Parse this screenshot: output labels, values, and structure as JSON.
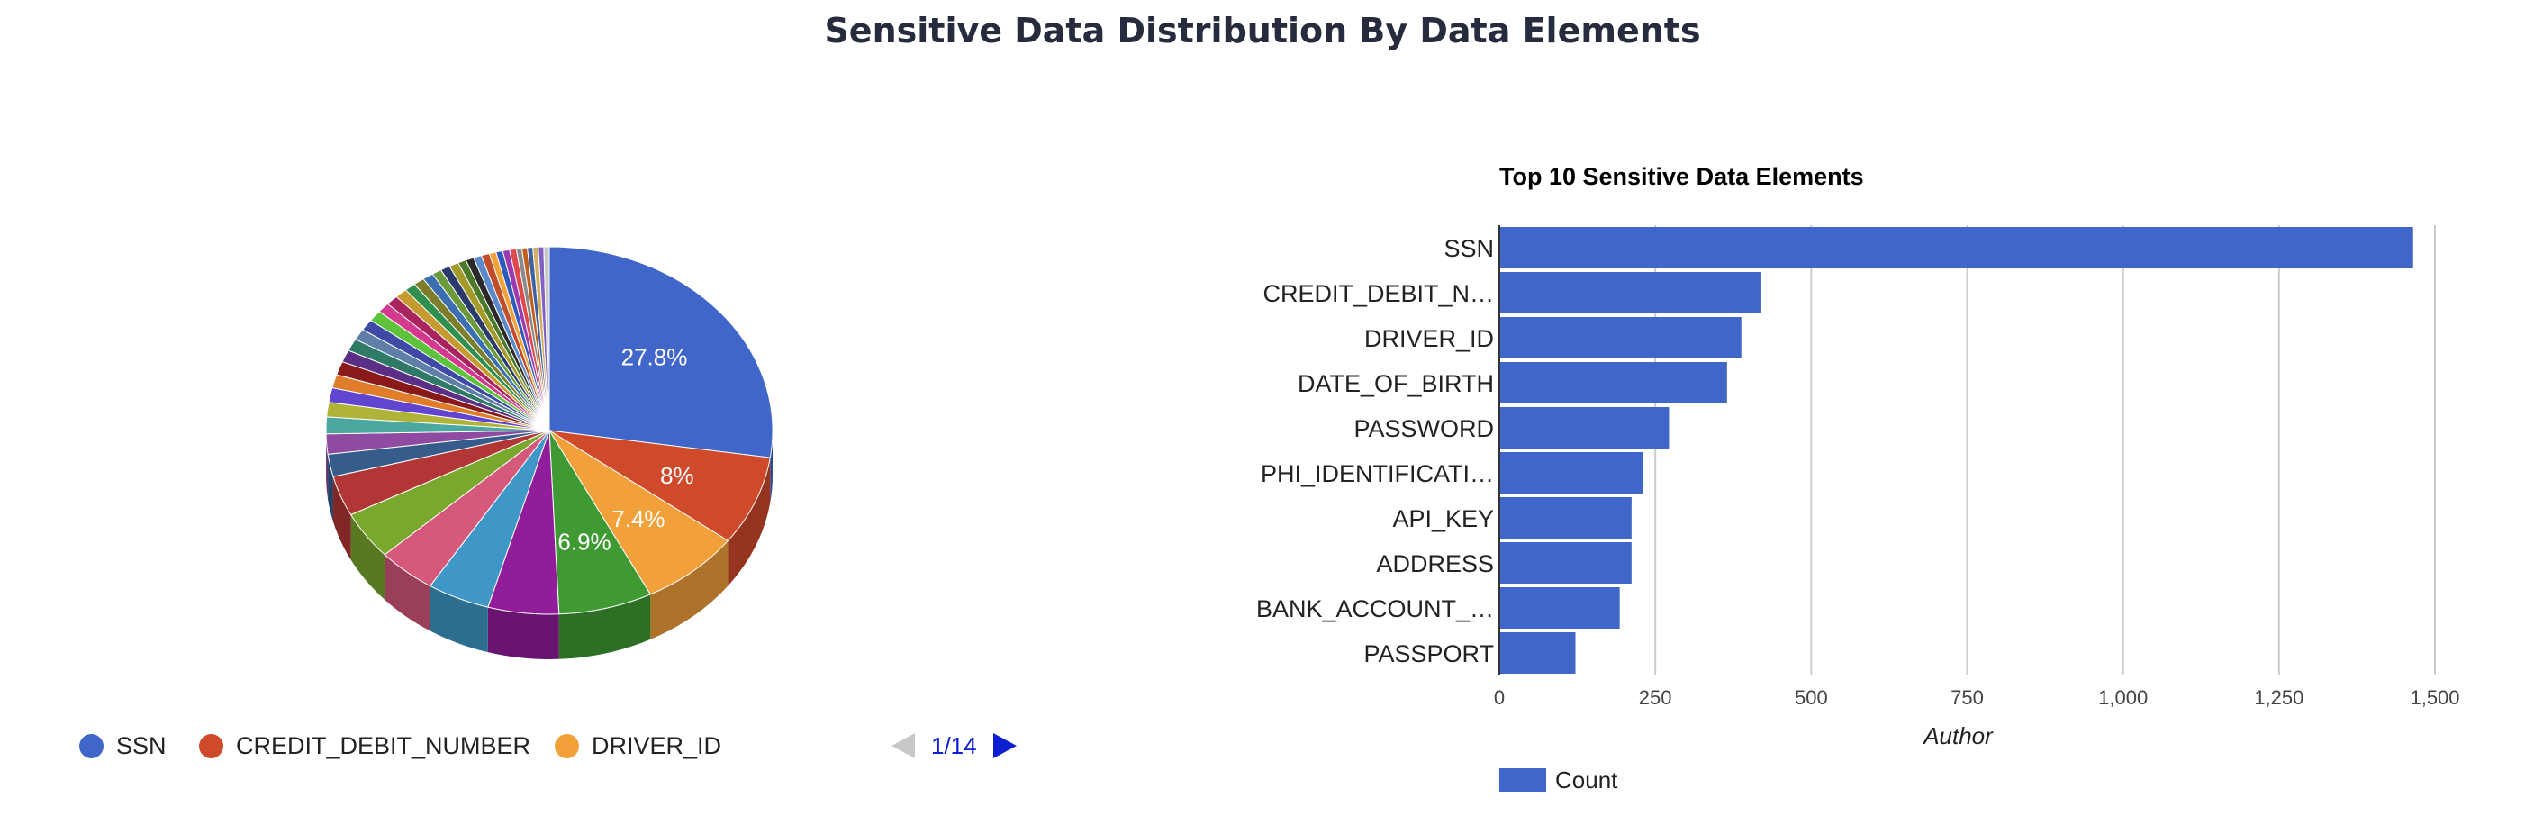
{
  "page": {
    "title": "Sensitive Data Distribution By Data Elements"
  },
  "chart_data": [
    {
      "type": "pie",
      "style": "3d",
      "slices": [
        {
          "label": "SSN",
          "percent": 27.8,
          "color": "#4066c9",
          "shown_label": "27.8%"
        },
        {
          "label": "CREDIT_DEBIT_NUMBER",
          "percent": 8.0,
          "color": "#cf4a2b",
          "shown_label": "8%"
        },
        {
          "label": "DRIVER_ID",
          "percent": 7.4,
          "color": "#f2a03a",
          "shown_label": "7.4%"
        },
        {
          "label": "",
          "percent": 6.9,
          "color": "#3f9a34",
          "shown_label": "6.9%"
        },
        {
          "label": "",
          "percent": 5.2,
          "color": "#921d9b",
          "shown_label": ""
        },
        {
          "label": "",
          "percent": 4.6,
          "color": "#3f97c7",
          "shown_label": ""
        },
        {
          "label": "",
          "percent": 4.3,
          "color": "#d4597a",
          "shown_label": ""
        },
        {
          "label": "",
          "percent": 4.3,
          "color": "#7aa82e",
          "shown_label": ""
        },
        {
          "label": "",
          "percent": 3.6,
          "color": "#b33636",
          "shown_label": ""
        },
        {
          "label": "",
          "percent": 2.0,
          "color": "#365c8c",
          "shown_label": ""
        },
        {
          "label": "",
          "percent": 1.8,
          "color": "#8e4ba1",
          "shown_label": ""
        },
        {
          "label": "",
          "percent": 1.5,
          "color": "#4aa8a0",
          "shown_label": ""
        },
        {
          "label": "",
          "percent": 1.3,
          "color": "#b0b33a",
          "shown_label": ""
        },
        {
          "label": "",
          "percent": 1.3,
          "color": "#6144cf",
          "shown_label": ""
        },
        {
          "label": "",
          "percent": 1.2,
          "color": "#e07d2a",
          "shown_label": ""
        },
        {
          "label": "",
          "percent": 1.2,
          "color": "#8a1a1a",
          "shown_label": ""
        },
        {
          "label": "",
          "percent": 1.1,
          "color": "#5b2f86",
          "shown_label": ""
        },
        {
          "label": "",
          "percent": 1.1,
          "color": "#2f7a66",
          "shown_label": ""
        },
        {
          "label": "",
          "percent": 1.0,
          "color": "#5f7fa8",
          "shown_label": ""
        },
        {
          "label": "",
          "percent": 1.0,
          "color": "#3f4aa6",
          "shown_label": ""
        },
        {
          "label": "",
          "percent": 1.0,
          "color": "#5ec23a",
          "shown_label": ""
        },
        {
          "label": "",
          "percent": 0.9,
          "color": "#d33a8f",
          "shown_label": ""
        },
        {
          "label": "",
          "percent": 0.9,
          "color": "#a9245f",
          "shown_label": ""
        },
        {
          "label": "",
          "percent": 0.9,
          "color": "#c59b2f",
          "shown_label": ""
        },
        {
          "label": "",
          "percent": 0.8,
          "color": "#2f8f4f",
          "shown_label": ""
        },
        {
          "label": "",
          "percent": 0.8,
          "color": "#7d7d2a",
          "shown_label": ""
        },
        {
          "label": "",
          "percent": 0.8,
          "color": "#3b6fb0",
          "shown_label": ""
        },
        {
          "label": "",
          "percent": 0.7,
          "color": "#6a9a3a",
          "shown_label": ""
        },
        {
          "label": "",
          "percent": 0.7,
          "color": "#2b3a6b",
          "shown_label": ""
        },
        {
          "label": "",
          "percent": 0.7,
          "color": "#a39a2a",
          "shown_label": ""
        },
        {
          "label": "",
          "percent": 0.6,
          "color": "#4b7a2b",
          "shown_label": ""
        },
        {
          "label": "",
          "percent": 0.6,
          "color": "#2a2a2a",
          "shown_label": ""
        },
        {
          "label": "",
          "percent": 0.6,
          "color": "#5a8ac9",
          "shown_label": ""
        },
        {
          "label": "",
          "percent": 0.6,
          "color": "#c14d2a",
          "shown_label": ""
        },
        {
          "label": "",
          "percent": 0.5,
          "color": "#f0a23a",
          "shown_label": ""
        },
        {
          "label": "",
          "percent": 0.5,
          "color": "#2f5bbf",
          "shown_label": ""
        },
        {
          "label": "",
          "percent": 0.5,
          "color": "#9c3ab0",
          "shown_label": ""
        },
        {
          "label": "",
          "percent": 0.5,
          "color": "#e04a4a",
          "shown_label": ""
        },
        {
          "label": "",
          "percent": 0.4,
          "color": "#8a8a8a",
          "shown_label": ""
        },
        {
          "label": "",
          "percent": 0.4,
          "color": "#c06020",
          "shown_label": ""
        },
        {
          "label": "",
          "percent": 0.4,
          "color": "#4060a0",
          "shown_label": ""
        },
        {
          "label": "",
          "percent": 0.4,
          "color": "#d0b060",
          "shown_label": ""
        },
        {
          "label": "",
          "percent": 0.4,
          "color": "#8060c0",
          "shown_label": ""
        },
        {
          "label": "",
          "percent": 0.4,
          "color": "#c8c8c8",
          "shown_label": ""
        }
      ],
      "legend": {
        "position": "bottom",
        "items": [
          {
            "label": "SSN",
            "color": "#4066c9"
          },
          {
            "label": "CREDIT_DEBIT_NUMBER",
            "color": "#cf4a2b"
          },
          {
            "label": "DRIVER_ID",
            "color": "#f2a03a"
          }
        ],
        "pager": {
          "text": "1/14",
          "prev_enabled": false,
          "next_enabled": true
        }
      }
    },
    {
      "type": "bar",
      "orientation": "horizontal",
      "title": "Top 10 Sensitive Data Elements",
      "categories": [
        "SSN",
        "CREDIT_DEBIT_N…",
        "DRIVER_ID",
        "DATE_OF_BIRTH",
        "PASSWORD",
        "PHI_IDENTIFICATI…",
        "API_KEY",
        "ADDRESS",
        "BANK_ACCOUNT_…",
        "PASSPORT"
      ],
      "series": [
        {
          "name": "Count",
          "color": "#4066c9",
          "values": [
            1465,
            420,
            388,
            365,
            272,
            230,
            212,
            212,
            193,
            122
          ]
        }
      ],
      "xlabel": "Author",
      "xlim": [
        0,
        1500
      ],
      "xticks": [
        "0",
        "250",
        "500",
        "750",
        "1,000",
        "1,250",
        "1,500"
      ],
      "grid": true,
      "legend": {
        "position": "bottom",
        "items": [
          {
            "label": "Count",
            "color": "#4066c9"
          }
        ]
      }
    }
  ]
}
